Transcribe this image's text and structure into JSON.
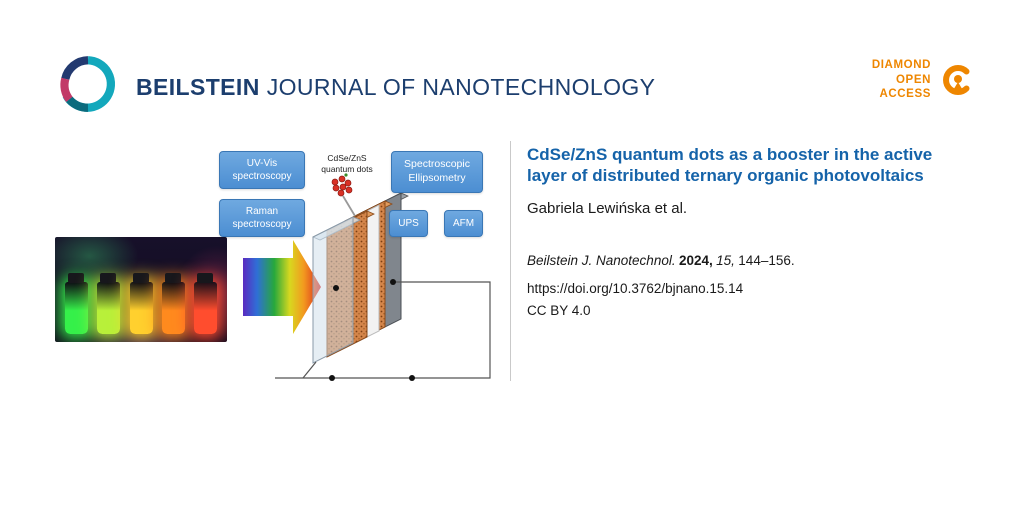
{
  "header": {
    "brand": {
      "bold": "BEILSTEIN",
      "rest": "JOURNAL OF NANOTECHNOLOGY"
    },
    "open_access": {
      "line1": "DIAMOND",
      "line2": "OPEN",
      "line3": "ACCESS"
    }
  },
  "graphic": {
    "boxes": {
      "uvvis": "UV-Vis spectroscopy",
      "raman": "Raman spectroscopy",
      "ellipsometry": "Spectroscopic Ellipsometry",
      "ups": "UPS",
      "afm": "AFM"
    },
    "qd_label": "CdSe/ZnS quantum dots"
  },
  "photo": {
    "vial_colors": [
      "#35f04a",
      "#b8f03a",
      "#ffd02e",
      "#ff8a1e",
      "#ff4d2e"
    ]
  },
  "article": {
    "title": "CdSe/ZnS quantum dots as a booster in the active layer of distributed ternary organic photovoltaics",
    "authors": "Gabriela Lewińska et al.",
    "citation": {
      "journal": "Beilstein J. Nanotechnol.",
      "year": "2024,",
      "volume": "15,",
      "pages": "144–156."
    },
    "doi": "https://doi.org/10.3762/bjnano.15.14",
    "license": "CC BY 4.0"
  },
  "colors": {
    "brand_navy": "#1c3e6e",
    "accent_orange": "#ee8600",
    "title_blue": "#1563a9",
    "box_blue": "#5b9bd5"
  }
}
